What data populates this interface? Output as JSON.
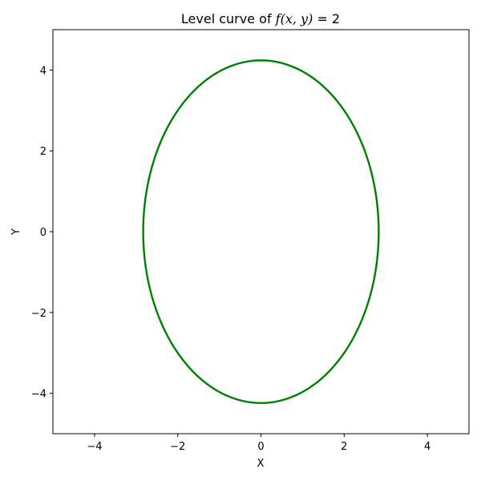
{
  "chart_data": {
    "type": "line",
    "title_prefix": "Level curve of ",
    "title_math": "f(x, y)",
    "title_suffix": " = 2",
    "xlabel": "X",
    "ylabel": "Y",
    "xlim": [
      -5,
      5
    ],
    "ylim": [
      -5,
      5
    ],
    "xticks": [
      -4,
      -2,
      0,
      2,
      4
    ],
    "yticks": [
      -4,
      -2,
      0,
      2,
      4
    ],
    "xtick_labels": [
      "−4",
      "−2",
      "0",
      "2",
      "4"
    ],
    "ytick_labels": [
      "−4",
      "−2",
      "0",
      "2",
      "4"
    ],
    "grid": false,
    "series": [
      {
        "shape": "ellipse",
        "center": [
          0,
          0
        ],
        "semi_axis_x": 2.83,
        "semi_axis_y": 4.24,
        "color": "#008000"
      }
    ]
  }
}
